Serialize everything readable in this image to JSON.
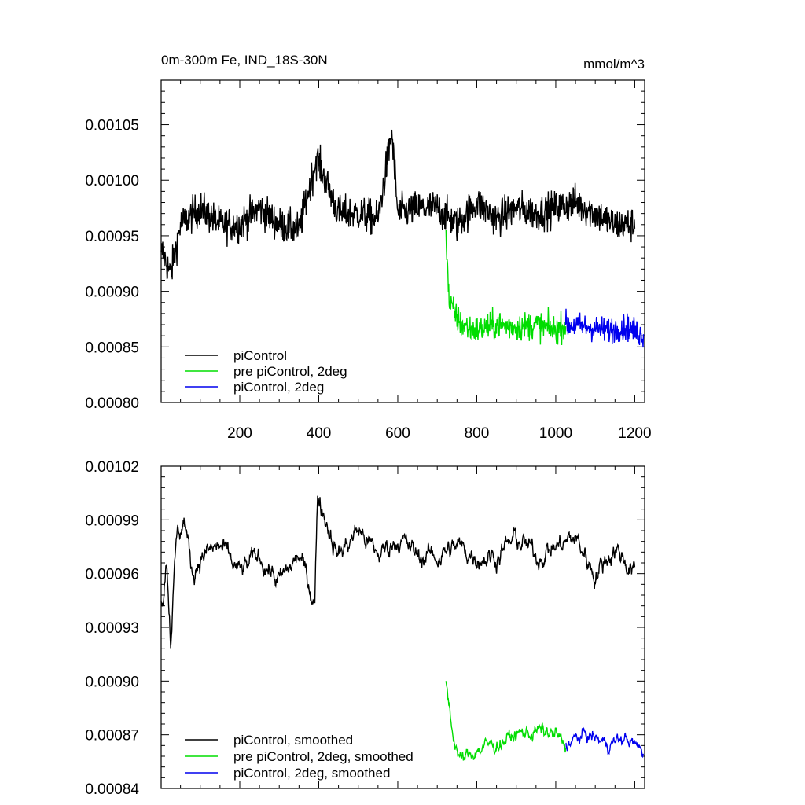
{
  "chart_data": [
    {
      "type": "line",
      "title": "0m-300m Fe, IND_18S-30N",
      "units": "mmol/m^3",
      "xlim": [
        1,
        1225
      ],
      "ylim": [
        0.0008,
        0.00109
      ],
      "x_ticks": [
        200,
        400,
        600,
        800,
        1000,
        1200
      ],
      "y_ticks": [
        "0.00080",
        "0.00085",
        "0.00090",
        "0.00095",
        "0.00100",
        "0.00105"
      ],
      "legend_position": "bottom-left",
      "series": [
        {
          "name": "piControl",
          "color": "#000000",
          "x_range": [
            1,
            1200
          ],
          "mean": 0.000968,
          "spread": 1.6e-05,
          "anchors": [
            [
              5,
              0.000935
            ],
            [
              25,
              0.000915
            ],
            [
              50,
              0.00096
            ],
            [
              100,
              0.000975
            ],
            [
              150,
              0.00096
            ],
            [
              200,
              0.00096
            ],
            [
              250,
              0.000975
            ],
            [
              300,
              0.00096
            ],
            [
              350,
              0.000955
            ],
            [
              395,
              0.00102
            ],
            [
              450,
              0.00097
            ],
            [
              500,
              0.00097
            ],
            [
              550,
              0.000965
            ],
            [
              585,
              0.001043
            ],
            [
              600,
              0.00097
            ],
            [
              650,
              0.000975
            ],
            [
              700,
              0.000975
            ],
            [
              750,
              0.00096
            ],
            [
              800,
              0.00098
            ],
            [
              850,
              0.000965
            ],
            [
              900,
              0.000975
            ],
            [
              950,
              0.00097
            ],
            [
              1000,
              0.000975
            ],
            [
              1050,
              0.00098
            ],
            [
              1100,
              0.00097
            ],
            [
              1150,
              0.00096
            ],
            [
              1200,
              0.00096
            ]
          ]
        },
        {
          "name": "pre piControl, 2deg",
          "color": "#00dd00",
          "x_range": [
            722,
            1025
          ],
          "mean": 0.000866,
          "spread": 1.3e-05,
          "anchors": [
            [
              722,
              0.000955
            ],
            [
              730,
              0.00089
            ],
            [
              760,
              0.00087
            ],
            [
              800,
              0.000865
            ],
            [
              850,
              0.00087
            ],
            [
              900,
              0.000868
            ],
            [
              950,
              0.00087
            ],
            [
              1000,
              0.000865
            ],
            [
              1025,
              0.00087
            ]
          ]
        },
        {
          "name": "piControl, 2deg",
          "color": "#0000ee",
          "x_range": [
            1025,
            1222
          ],
          "mean": 0.000866,
          "spread": 1.2e-05,
          "anchors": [
            [
              1025,
              0.00087
            ],
            [
              1080,
              0.000868
            ],
            [
              1130,
              0.000865
            ],
            [
              1180,
              0.000868
            ],
            [
              1222,
              0.00086
            ]
          ]
        }
      ]
    },
    {
      "type": "line",
      "title": "",
      "xlim": [
        1,
        1225
      ],
      "ylim": [
        0.00084,
        0.00102
      ],
      "x_ticks": [
        200,
        400,
        600,
        800,
        1000,
        1200
      ],
      "y_ticks": [
        "0.00084",
        "0.00087",
        "0.00090",
        "0.00093",
        "0.00096",
        "0.00099",
        "0.00102"
      ],
      "legend_position": "bottom-left",
      "series": [
        {
          "name": "piControl, smoothed",
          "color": "#000000",
          "x_range": [
            1,
            1200
          ],
          "mean": 0.000968,
          "spread": 1.1e-05,
          "anchors": [
            [
              5,
              0.000945
            ],
            [
              15,
              0.00097
            ],
            [
              25,
              0.000925
            ],
            [
              40,
              0.00098
            ],
            [
              60,
              0.00099
            ],
            [
              80,
              0.00096
            ],
            [
              100,
              0.00097
            ],
            [
              150,
              0.000975
            ],
            [
              200,
              0.00096
            ],
            [
              250,
              0.00097
            ],
            [
              300,
              0.000955
            ],
            [
              350,
              0.00097
            ],
            [
              390,
              0.000945
            ],
            [
              397,
              0.001005
            ],
            [
              450,
              0.00097
            ],
            [
              500,
              0.000985
            ],
            [
              550,
              0.00097
            ],
            [
              600,
              0.00098
            ],
            [
              650,
              0.00097
            ],
            [
              700,
              0.00097
            ],
            [
              750,
              0.000975
            ],
            [
              800,
              0.00097
            ],
            [
              850,
              0.00097
            ],
            [
              900,
              0.00098
            ],
            [
              950,
              0.00097
            ],
            [
              1000,
              0.000975
            ],
            [
              1050,
              0.00098
            ],
            [
              1100,
              0.00096
            ],
            [
              1150,
              0.000975
            ],
            [
              1200,
              0.00096
            ]
          ]
        },
        {
          "name": "pre piControl, 2deg, smoothed",
          "color": "#00dd00",
          "x_range": [
            722,
            1025
          ],
          "mean": 0.000866,
          "spread": 8e-06,
          "anchors": [
            [
              722,
              0.0009
            ],
            [
              740,
              0.00087
            ],
            [
              760,
              0.000855
            ],
            [
              800,
              0.000862
            ],
            [
              850,
              0.000865
            ],
            [
              900,
              0.00087
            ],
            [
              950,
              0.000872
            ],
            [
              1000,
              0.00087
            ],
            [
              1025,
              0.000862
            ]
          ]
        },
        {
          "name": "piControl, 2deg, smoothed",
          "color": "#0000ee",
          "x_range": [
            1025,
            1222
          ],
          "mean": 0.000866,
          "spread": 7e-06,
          "anchors": [
            [
              1025,
              0.000865
            ],
            [
              1080,
              0.00087
            ],
            [
              1130,
              0.000865
            ],
            [
              1180,
              0.000868
            ],
            [
              1222,
              0.00086
            ]
          ]
        }
      ]
    }
  ]
}
